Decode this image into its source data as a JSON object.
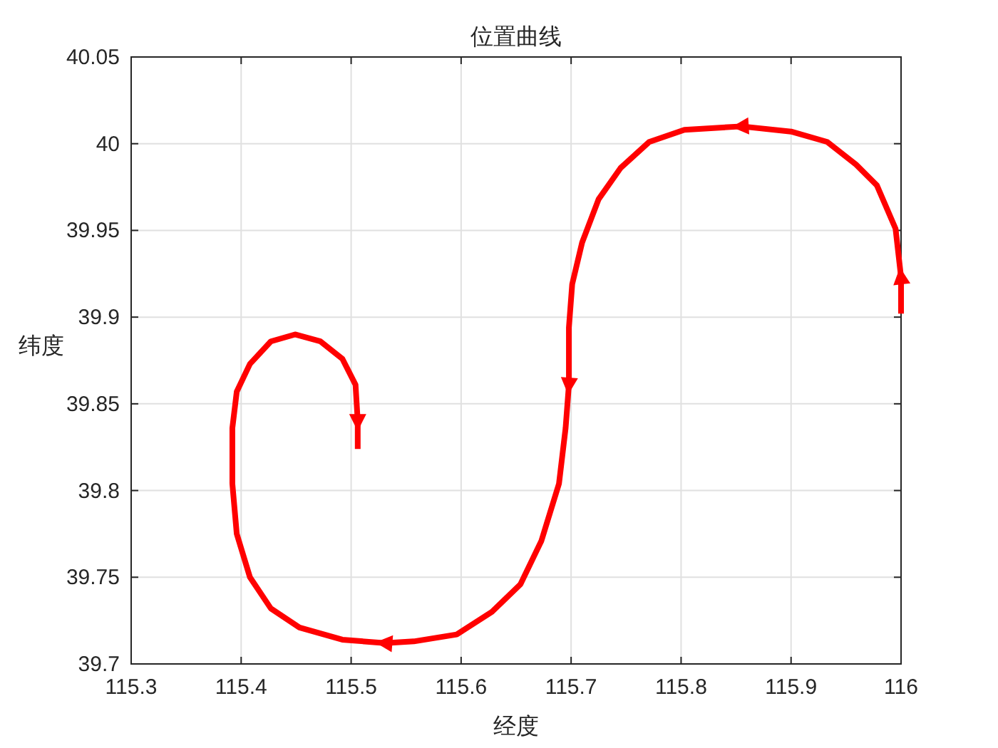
{
  "chart_data": {
    "type": "line",
    "title": "位置曲线",
    "xlabel": "经度",
    "ylabel": "纬度",
    "xlim": [
      115.3,
      116
    ],
    "xticks": [
      115.3,
      115.4,
      115.5,
      115.6,
      115.7,
      115.8,
      115.9,
      116
    ],
    "ylim": [
      39.7,
      40.05
    ],
    "yticks": [
      39.7,
      39.75,
      39.8,
      39.85,
      39.9,
      39.95,
      40,
      40.05
    ],
    "grid": true,
    "series": [
      {
        "color": "#ff0000",
        "x": [
          116,
          116,
          115.995,
          115.978,
          115.959,
          115.933,
          115.9,
          115.855,
          115.803,
          115.771,
          115.745,
          115.725,
          115.71,
          115.701,
          115.698,
          115.698,
          115.695,
          115.689,
          115.673,
          115.654,
          115.628,
          115.596,
          115.557,
          115.531,
          115.492,
          115.453,
          115.427,
          115.408,
          115.396,
          115.392,
          115.392,
          115.396,
          115.408,
          115.427,
          115.449,
          115.472,
          115.492,
          115.504,
          115.506,
          115.506
        ],
        "values": [
          39.902,
          39.923,
          39.951,
          39.976,
          39.988,
          40.001,
          40.007,
          40.01,
          40.008,
          40.001,
          39.986,
          39.968,
          39.943,
          39.919,
          39.894,
          39.861,
          39.836,
          39.804,
          39.771,
          39.746,
          39.73,
          39.717,
          39.713,
          39.712,
          39.714,
          39.721,
          39.732,
          39.75,
          39.775,
          39.804,
          39.836,
          39.857,
          39.873,
          39.886,
          39.89,
          39.886,
          39.876,
          39.861,
          39.84,
          39.824
        ]
      }
    ]
  }
}
